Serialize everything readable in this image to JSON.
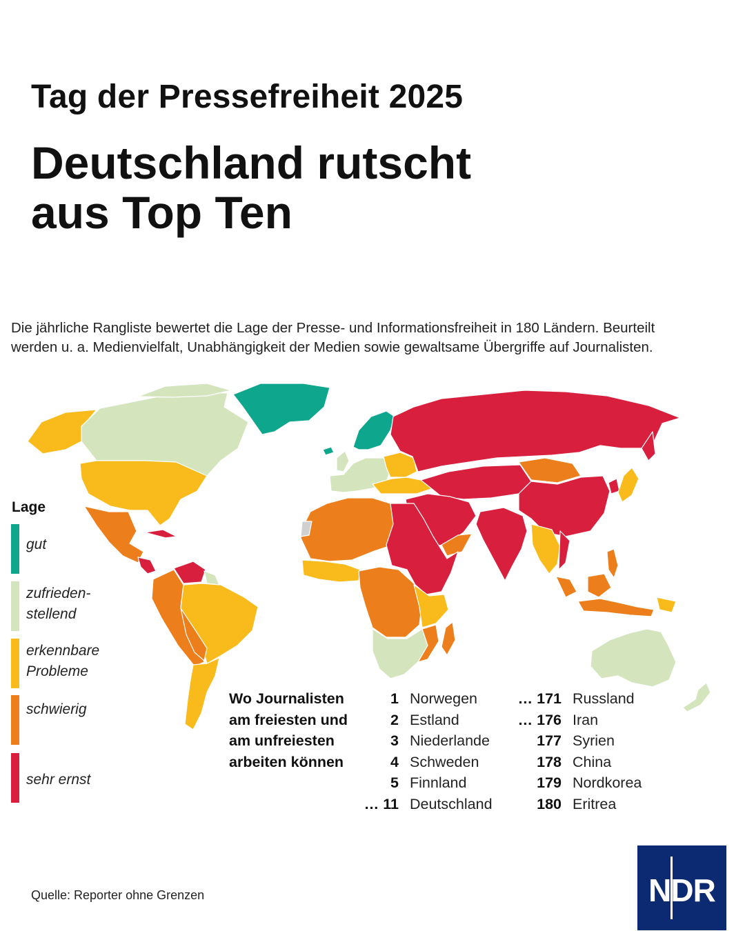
{
  "header": {
    "kicker": "Tag der Pressefreiheit 2025",
    "headline_line1": "Deutschland rutscht",
    "headline_line2": "aus Top Ten"
  },
  "intro": {
    "line1": "Die jährliche Rangliste bewertet die Lage der Presse- und Informationsfreiheit in 180 Ländern. Beurteilt",
    "line2": "werden u. a. Medienvielfalt, Unabhängigkeit der Medien sowie gewaltsame Übergriffe auf Journalisten."
  },
  "legend": {
    "title": "Lage",
    "items": [
      {
        "label1": "gut",
        "label2": "",
        "color": "#0fa68e"
      },
      {
        "label1": "zufrieden-",
        "label2": "stellend",
        "color": "#d4e5bd"
      },
      {
        "label1": "erkennbare",
        "label2": "Probleme",
        "color": "#f8bb1b"
      },
      {
        "label1": "schwierig",
        "label2": "",
        "color": "#ec7f1b"
      },
      {
        "label1": "sehr ernst",
        "label2": "",
        "color": "#d81f3e"
      }
    ]
  },
  "ranking": {
    "title_lines": [
      "Wo Journalisten",
      "am freiesten und",
      "am unfreiesten",
      "arbeiten können"
    ],
    "top": [
      {
        "rank": "1",
        "country": "Norwegen"
      },
      {
        "rank": "2",
        "country": "Estland"
      },
      {
        "rank": "3",
        "country": "Niederlande"
      },
      {
        "rank": "4",
        "country": "Schweden"
      },
      {
        "rank": "5",
        "country": "Finnland"
      },
      {
        "rank": "… 11",
        "country": "Deutschland"
      }
    ],
    "bottom": [
      {
        "rank": "… 171",
        "country": "Russland"
      },
      {
        "rank": "… 176",
        "country": "Iran"
      },
      {
        "rank": "177",
        "country": "Syrien"
      },
      {
        "rank": "178",
        "country": "China"
      },
      {
        "rank": "179",
        "country": "Nordkorea"
      },
      {
        "rank": "180",
        "country": "Eritrea"
      }
    ]
  },
  "map_colors": {
    "gut": "#0fa68e",
    "zufriedenstellend": "#d4e5bd",
    "erkennbare_probleme": "#f8bb1b",
    "schwierig": "#ec7f1b",
    "sehr_ernst": "#d81f3e",
    "no_data": "#d0d0d0"
  },
  "footer": {
    "source": "Quelle: Reporter ohne Grenzen",
    "logo": "NDR"
  }
}
